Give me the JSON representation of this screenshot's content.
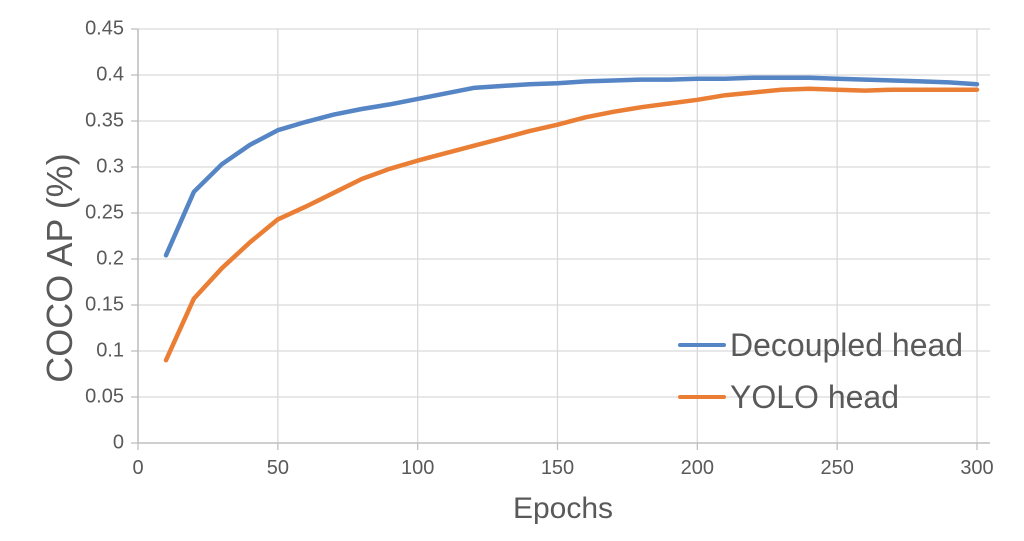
{
  "colors": {
    "text": "#595959",
    "grid": "#D9D9D9",
    "axis": "#BFBFBF",
    "background": "#FFFFFF",
    "series_blue": "#5585C4",
    "series_orange": "#EA7E35"
  },
  "chart_data": {
    "type": "line",
    "title": "",
    "xlabel": "Epochs",
    "ylabel": "COCO AP (%)",
    "xlim": [
      0,
      300
    ],
    "ylim": [
      0,
      0.45
    ],
    "grid": true,
    "legend_position": "inside bottom-right",
    "xticks": {
      "values": [
        0,
        50,
        100,
        150,
        200,
        250,
        300
      ],
      "labels": [
        "0",
        "50",
        "100",
        "150",
        "200",
        "250",
        "300"
      ]
    },
    "yticks": {
      "values": [
        0,
        0.05,
        0.1,
        0.15,
        0.2,
        0.25,
        0.3,
        0.35,
        0.4,
        0.45
      ],
      "labels": [
        "0",
        "0.05",
        "0.1",
        "0.15",
        "0.2",
        "0.25",
        "0.3",
        "0.35",
        "0.4",
        "0.45"
      ]
    },
    "x": [
      10,
      20,
      30,
      40,
      50,
      60,
      70,
      80,
      90,
      100,
      110,
      120,
      130,
      140,
      150,
      160,
      170,
      180,
      190,
      200,
      210,
      220,
      230,
      240,
      250,
      260,
      270,
      280,
      290,
      300
    ],
    "series": [
      {
        "name": "Decoupled head",
        "color": "#5585C4",
        "values": [
          0.204,
          0.273,
          0.303,
          0.324,
          0.34,
          0.349,
          0.357,
          0.363,
          0.368,
          0.374,
          0.38,
          0.386,
          0.388,
          0.39,
          0.391,
          0.393,
          0.394,
          0.395,
          0.395,
          0.396,
          0.396,
          0.397,
          0.397,
          0.397,
          0.396,
          0.395,
          0.394,
          0.393,
          0.392,
          0.39
        ]
      },
      {
        "name": "YOLO head",
        "color": "#EA7E35",
        "values": [
          0.09,
          0.157,
          0.19,
          0.218,
          0.243,
          0.257,
          0.272,
          0.287,
          0.298,
          0.307,
          0.315,
          0.323,
          0.331,
          0.339,
          0.346,
          0.354,
          0.36,
          0.365,
          0.369,
          0.373,
          0.378,
          0.381,
          0.384,
          0.385,
          0.384,
          0.383,
          0.384,
          0.384,
          0.384,
          0.384
        ]
      }
    ]
  }
}
